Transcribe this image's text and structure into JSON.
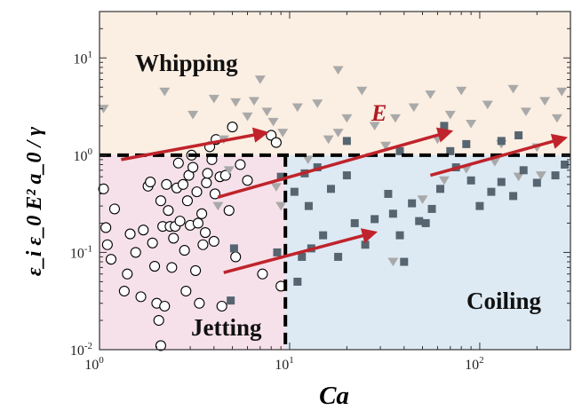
{
  "chart_data": {
    "type": "scatter",
    "title": "",
    "xlabel": "Ca",
    "ylabel": "ε_i ε_0 E² a_0 / γ",
    "x_scale": "log",
    "y_scale": "log",
    "xlim": [
      1,
      300
    ],
    "ylim": [
      0.01,
      30
    ],
    "x_ticks": [
      {
        "value": 1,
        "base": "10",
        "exp": "0"
      },
      {
        "value": 10,
        "base": "10",
        "exp": "1"
      },
      {
        "value": 100,
        "base": "10",
        "exp": "2"
      }
    ],
    "y_ticks": [
      {
        "value": 0.01,
        "base": "10",
        "exp": "-2"
      },
      {
        "value": 0.1,
        "base": "10",
        "exp": "-1"
      },
      {
        "value": 1,
        "base": "10",
        "exp": "0"
      },
      {
        "value": 10,
        "base": "10",
        "exp": "1"
      }
    ],
    "regions": [
      {
        "name": "Whipping",
        "color": "#fbeee2",
        "x_range": [
          1,
          300
        ],
        "y_range": [
          1,
          30
        ]
      },
      {
        "name": "Jetting",
        "color": "#f6e1ea",
        "x_range": [
          1,
          9.5
        ],
        "y_range": [
          0.01,
          1
        ]
      },
      {
        "name": "Coiling",
        "color": "#dde9f3",
        "x_range": [
          9.5,
          300
        ],
        "y_range": [
          0.01,
          1
        ]
      }
    ],
    "boundaries": {
      "y": 1,
      "x": 9.5,
      "style": "dashed",
      "color": "#000000"
    },
    "arrow_label": "E",
    "arrow_color": "#c0232b",
    "arrows": [
      {
        "from": [
          1.3,
          0.9
        ],
        "to": [
          7.5,
          1.7
        ]
      },
      {
        "from": [
          4.2,
          0.37
        ],
        "to": [
          70,
          1.75
        ]
      },
      {
        "from": [
          4.5,
          0.062
        ],
        "to": [
          28,
          0.16
        ]
      },
      {
        "from": [
          55,
          0.62
        ],
        "to": [
          280,
          1.5
        ]
      }
    ],
    "series": [
      {
        "marker": "open-circle",
        "color": "#000000",
        "points": [
          [
            1.05,
            0.45
          ],
          [
            1.08,
            0.18
          ],
          [
            1.1,
            0.12
          ],
          [
            1.15,
            0.085
          ],
          [
            1.2,
            0.28
          ],
          [
            1.35,
            0.04
          ],
          [
            1.4,
            0.06
          ],
          [
            1.45,
            0.155
          ],
          [
            1.55,
            0.1
          ],
          [
            1.65,
            0.035
          ],
          [
            1.7,
            0.17
          ],
          [
            1.8,
            0.48
          ],
          [
            1.85,
            0.53
          ],
          [
            1.9,
            0.125
          ],
          [
            1.95,
            0.072
          ],
          [
            2.0,
            0.03
          ],
          [
            2.05,
            0.02
          ],
          [
            2.1,
            0.011
          ],
          [
            2.1,
            0.34
          ],
          [
            2.15,
            0.185
          ],
          [
            2.2,
            0.028
          ],
          [
            2.25,
            0.5
          ],
          [
            2.3,
            0.27
          ],
          [
            2.35,
            0.185
          ],
          [
            2.4,
            0.07
          ],
          [
            2.45,
            0.14
          ],
          [
            2.5,
            0.185
          ],
          [
            2.55,
            0.46
          ],
          [
            2.6,
            0.83
          ],
          [
            2.65,
            0.21
          ],
          [
            2.75,
            0.5
          ],
          [
            2.8,
            0.105
          ],
          [
            2.85,
            0.04
          ],
          [
            2.9,
            0.34
          ],
          [
            2.95,
            0.62
          ],
          [
            3.0,
            0.19
          ],
          [
            3.05,
            1.0
          ],
          [
            3.1,
            0.75
          ],
          [
            3.2,
            0.065
          ],
          [
            3.25,
            0.42
          ],
          [
            3.3,
            0.2
          ],
          [
            3.35,
            0.03
          ],
          [
            3.45,
            0.25
          ],
          [
            3.5,
            0.12
          ],
          [
            3.6,
            0.16
          ],
          [
            3.65,
            0.52
          ],
          [
            3.7,
            0.65
          ],
          [
            3.8,
            1.22
          ],
          [
            3.9,
            0.9
          ],
          [
            4.0,
            0.13
          ],
          [
            4.05,
            0.4
          ],
          [
            4.1,
            1.45
          ],
          [
            4.3,
            0.6
          ],
          [
            4.4,
            0.028
          ],
          [
            4.6,
            0.62
          ],
          [
            4.8,
            0.27
          ],
          [
            5.0,
            1.95
          ],
          [
            5.2,
            0.09
          ],
          [
            5.5,
            0.8
          ],
          [
            6.0,
            0.55
          ],
          [
            7.2,
            0.06
          ],
          [
            8.0,
            1.6
          ],
          [
            8.5,
            1.35
          ],
          [
            9.0,
            0.045
          ]
        ]
      },
      {
        "marker": "triangle-down",
        "color": "#a9a9a9",
        "points": [
          [
            1.05,
            3.0
          ],
          [
            2.2,
            4.5
          ],
          [
            3.1,
            2.6
          ],
          [
            4.0,
            3.8
          ],
          [
            4.2,
            0.3
          ],
          [
            4.5,
            1.45
          ],
          [
            4.8,
            0.7
          ],
          [
            5.2,
            3.5
          ],
          [
            6.0,
            2.5
          ],
          [
            6.5,
            3.6
          ],
          [
            7.0,
            6.0
          ],
          [
            7.6,
            2.8
          ],
          [
            8.2,
            2.2
          ],
          [
            8.5,
            0.47
          ],
          [
            9.2,
            1.7
          ],
          [
            11.0,
            3.1
          ],
          [
            12.5,
            0.9
          ],
          [
            14.0,
            3.4
          ],
          [
            16.0,
            1.45
          ],
          [
            18.0,
            7.5
          ],
          [
            20.0,
            2.4
          ],
          [
            24.0,
            4.6
          ],
          [
            28.0,
            2.0
          ],
          [
            32.0,
            1.25
          ],
          [
            36.0,
            2.4
          ],
          [
            45.0,
            3.1
          ],
          [
            55.0,
            4.2
          ],
          [
            60.0,
            1.45
          ],
          [
            70.0,
            2.6
          ],
          [
            80.0,
            4.6
          ],
          [
            90.0,
            2.1
          ],
          [
            110.0,
            3.3
          ],
          [
            130.0,
            1.3
          ],
          [
            150.0,
            4.8
          ],
          [
            175.0,
            2.8
          ],
          [
            200.0,
            1.2
          ],
          [
            220.0,
            3.6
          ],
          [
            255.0,
            2.4
          ],
          [
            270.0,
            4.5
          ],
          [
            50.0,
            0.35
          ],
          [
            65.0,
            0.55
          ],
          [
            85.0,
            0.72
          ],
          [
            120.0,
            0.85
          ],
          [
            160.0,
            0.6
          ],
          [
            210.0,
            0.62
          ],
          [
            35.0,
            0.08
          ],
          [
            9.0,
            0.3
          ],
          [
            18.0,
            1.7
          ]
        ]
      },
      {
        "marker": "filled-square",
        "color": "#566570",
        "points": [
          [
            4.9,
            0.032
          ],
          [
            5.1,
            0.11
          ],
          [
            8.6,
            0.1
          ],
          [
            9.0,
            0.6
          ],
          [
            10.6,
            0.42
          ],
          [
            11.0,
            0.05
          ],
          [
            11.6,
            0.09
          ],
          [
            12.0,
            0.65
          ],
          [
            12.6,
            0.3
          ],
          [
            13.0,
            0.11
          ],
          [
            14.0,
            0.75
          ],
          [
            15.0,
            0.15
          ],
          [
            16.5,
            0.45
          ],
          [
            18.0,
            0.09
          ],
          [
            20.0,
            0.62
          ],
          [
            22.0,
            0.2
          ],
          [
            25.0,
            0.12
          ],
          [
            28.0,
            0.22
          ],
          [
            33.0,
            0.4
          ],
          [
            35.0,
            0.25
          ],
          [
            38.0,
            0.15
          ],
          [
            40.0,
            0.08
          ],
          [
            44.0,
            0.32
          ],
          [
            48.0,
            0.21
          ],
          [
            52.0,
            0.2
          ],
          [
            56.0,
            0.28
          ],
          [
            62.0,
            0.45
          ],
          [
            70.0,
            1.1
          ],
          [
            75.0,
            0.75
          ],
          [
            90.0,
            0.55
          ],
          [
            100.0,
            0.3
          ],
          [
            115.0,
            0.42
          ],
          [
            130.0,
            0.53
          ],
          [
            150.0,
            0.38
          ],
          [
            170.0,
            0.7
          ],
          [
            200.0,
            0.52
          ],
          [
            250.0,
            0.62
          ],
          [
            280.0,
            0.8
          ],
          [
            20.0,
            1.4
          ],
          [
            38.0,
            1.1
          ],
          [
            65.0,
            2.0
          ],
          [
            85.0,
            1.3
          ],
          [
            130.0,
            1.4
          ],
          [
            160.0,
            1.6
          ]
        ]
      }
    ]
  }
}
